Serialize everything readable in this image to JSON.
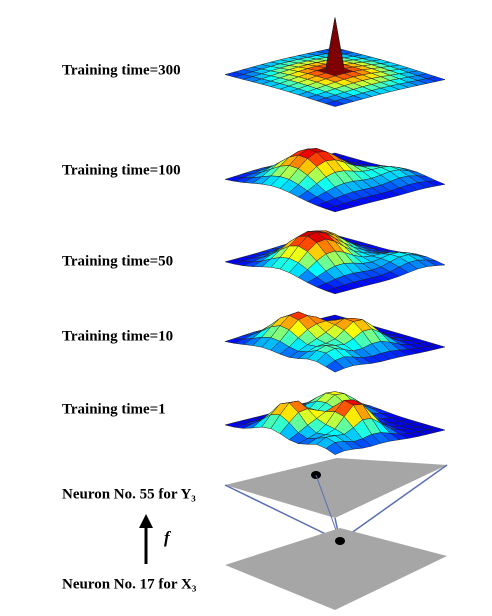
{
  "labels": [
    "Training time=300",
    "Training time=100",
    "Training time=50",
    "Training time=10",
    "Training time=1"
  ],
  "output_neuron": "Neuron No. 55 for Y₃",
  "input_neuron": "Neuron No. 17 for X₃",
  "arrow_label": "f"
}
